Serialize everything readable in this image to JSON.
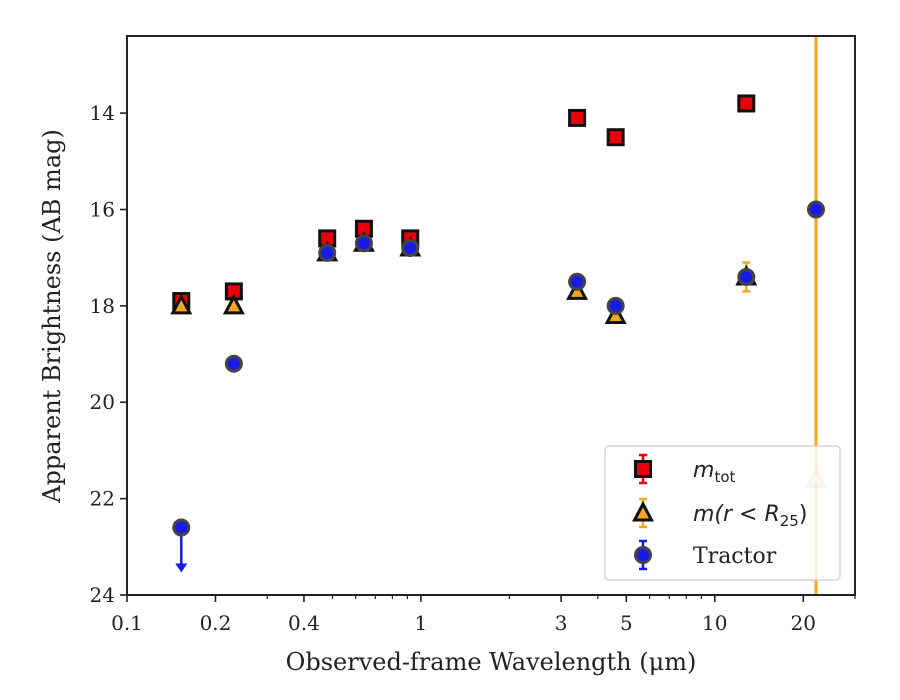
{
  "chart_data": {
    "type": "scatter",
    "xscale": "log",
    "xlim": [
      0.1,
      30
    ],
    "ylim": [
      24.0,
      12.4
    ],
    "y_inverted": true,
    "xlabel": "Observed-frame Wavelength (μm)",
    "ylabel": "Apparent Brightness (AB mag)",
    "x_ticks": [
      {
        "value": 0.1,
        "label": "0.1"
      },
      {
        "value": 0.2,
        "label": "0.2"
      },
      {
        "value": 0.4,
        "label": "0.4"
      },
      {
        "value": 1,
        "label": "1"
      },
      {
        "value": 3,
        "label": "3"
      },
      {
        "value": 5,
        "label": "5"
      },
      {
        "value": 10,
        "label": "10"
      },
      {
        "value": 20,
        "label": "20"
      }
    ],
    "x_minor_ticks": [
      0.3,
      0.5,
      0.6,
      0.7,
      0.8,
      0.9,
      2,
      4,
      6,
      7,
      8,
      9,
      30
    ],
    "y_ticks": [
      {
        "value": 14,
        "label": "14"
      },
      {
        "value": 16,
        "label": "16"
      },
      {
        "value": 18,
        "label": "18"
      },
      {
        "value": 20,
        "label": "20"
      },
      {
        "value": 22,
        "label": "22"
      },
      {
        "value": 24,
        "label": "24"
      }
    ],
    "grid": false,
    "legend_position": "lower-right",
    "vertical_line": {
      "x": 22.1,
      "color": "#f5a623"
    },
    "series": [
      {
        "name": "m_tot",
        "legend_main": "m",
        "legend_sub": "tot",
        "marker": "square",
        "color": "#e8000b",
        "edge": "#111111",
        "points": [
          {
            "x": 0.153,
            "y": 17.9,
            "err": 0.1
          },
          {
            "x": 0.231,
            "y": 17.7,
            "err": 0.05
          },
          {
            "x": 0.48,
            "y": 16.6,
            "err": 0.05
          },
          {
            "x": 0.64,
            "y": 16.4,
            "err": 0.05
          },
          {
            "x": 0.92,
            "y": 16.6,
            "err": 0.05
          },
          {
            "x": 3.4,
            "y": 14.1,
            "err": 0.05
          },
          {
            "x": 4.6,
            "y": 14.5,
            "err": 0.05
          },
          {
            "x": 12.8,
            "y": 13.8,
            "err": 0.05
          }
        ]
      },
      {
        "name": "m(r < R25)",
        "legend_main": "m(r < R",
        "legend_sub": "25",
        "legend_end": ")",
        "marker": "triangle",
        "color": "#f5a623",
        "edge": "#111111",
        "points": [
          {
            "x": 0.153,
            "y": 18.0,
            "err": 0.05
          },
          {
            "x": 0.231,
            "y": 18.0,
            "err": 0.05
          },
          {
            "x": 0.48,
            "y": 16.9,
            "err": 0.05
          },
          {
            "x": 0.64,
            "y": 16.7,
            "err": 0.05
          },
          {
            "x": 0.92,
            "y": 16.8,
            "err": 0.05
          },
          {
            "x": 3.4,
            "y": 17.7,
            "err": 0.05
          },
          {
            "x": 4.6,
            "y": 18.2,
            "err": 0.05
          },
          {
            "x": 12.8,
            "y": 17.4,
            "err": 0.3
          },
          {
            "x": 22.1,
            "y": 21.6,
            "err": 0.05,
            "faded": true
          }
        ]
      },
      {
        "name": "Tractor",
        "legend_main": "Tractor",
        "marker": "circle",
        "color": "#1a1ae6",
        "edge": "#444444",
        "points": [
          {
            "x": 0.153,
            "y": 22.6,
            "err": 0.05,
            "upper_limit": true
          },
          {
            "x": 0.231,
            "y": 19.2,
            "err": 0.05
          },
          {
            "x": 0.48,
            "y": 16.9,
            "err": 0.05
          },
          {
            "x": 0.64,
            "y": 16.7,
            "err": 0.05
          },
          {
            "x": 0.92,
            "y": 16.8,
            "err": 0.05
          },
          {
            "x": 3.4,
            "y": 17.5,
            "err": 0.05
          },
          {
            "x": 4.6,
            "y": 18.0,
            "err": 0.05
          },
          {
            "x": 12.8,
            "y": 17.4,
            "err": 0.05
          },
          {
            "x": 22.1,
            "y": 16.0,
            "err": 0.05
          }
        ]
      }
    ]
  }
}
